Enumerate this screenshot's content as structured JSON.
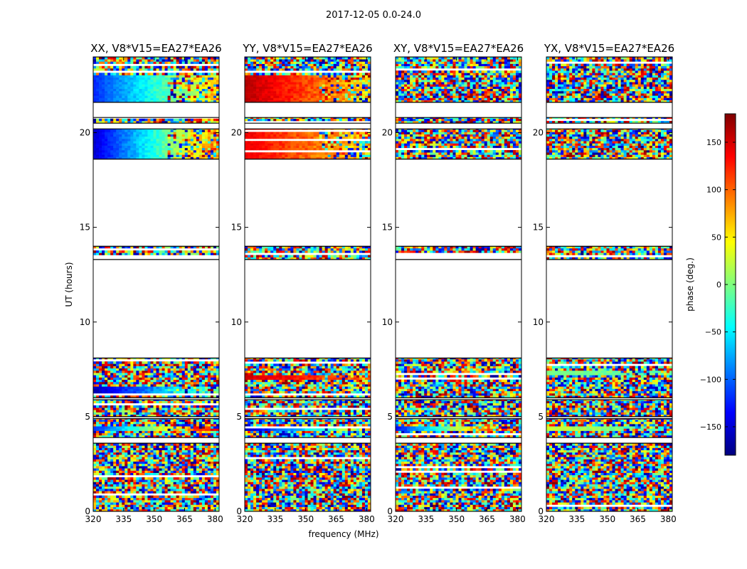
{
  "figure": {
    "suptitle": "2017-12-05 0.0-24.0"
  },
  "chart_data": {
    "type": "heatmap",
    "xlabel": "frequency (MHz)",
    "ylabel": "UT (hours)",
    "xlim": [
      320,
      382
    ],
    "ylim": [
      0,
      24
    ],
    "x_ticks": [
      320,
      335,
      350,
      365,
      380
    ],
    "y_ticks": [
      0,
      5,
      10,
      15,
      20
    ],
    "colorbar": {
      "label": "phase (deg.)",
      "range": [
        -180,
        180
      ],
      "ticks": [
        150,
        100,
        50,
        0,
        -50,
        -100,
        -150
      ],
      "tick_labels": [
        "150",
        "100",
        "50",
        "0",
        "−50",
        "−100",
        "−150"
      ],
      "colormap": "jet",
      "colors": [
        "#00007f",
        "#0000ff",
        "#007fff",
        "#00ffff",
        "#7fff7f",
        "#ffff00",
        "#ff7f00",
        "#ff0000",
        "#7f0000"
      ]
    },
    "data_hour_blocks": [
      [
        0.0,
        3.6
      ],
      [
        3.9,
        4.9
      ],
      [
        5.0,
        5.9
      ],
      [
        6.0,
        8.1
      ],
      [
        13.3,
        14.0
      ],
      [
        18.6,
        20.2
      ],
      [
        20.5,
        20.8
      ],
      [
        21.6,
        24.0
      ]
    ],
    "panels": [
      {
        "title": "XX, V8*V15=EA27*EA26",
        "coherent_bands": [
          [
            4.15,
            4.45,
            -120,
            150
          ],
          [
            18.6,
            20.2,
            -150,
            90
          ],
          [
            21.6,
            23.0,
            -120,
            60
          ],
          [
            6.2,
            6.5,
            -160,
            0
          ]
        ]
      },
      {
        "title": "YY, V8*V15=EA27*EA26",
        "coherent_bands": [
          [
            4.15,
            4.45,
            -160,
            60
          ],
          [
            18.6,
            20.2,
            140,
            60
          ],
          [
            21.6,
            23.0,
            160,
            60
          ],
          [
            6.9,
            7.2,
            150,
            100
          ]
        ]
      },
      {
        "title": "XY, V8*V15=EA27*EA26",
        "coherent_bands": [
          [
            4.15,
            4.45,
            -130,
            170
          ]
        ]
      },
      {
        "title": "YX, V8*V15=EA27*EA26",
        "coherent_bands": [
          [
            4.15,
            4.45,
            30,
            -30
          ],
          [
            7.1,
            7.4,
            0,
            -10
          ]
        ]
      }
    ]
  }
}
